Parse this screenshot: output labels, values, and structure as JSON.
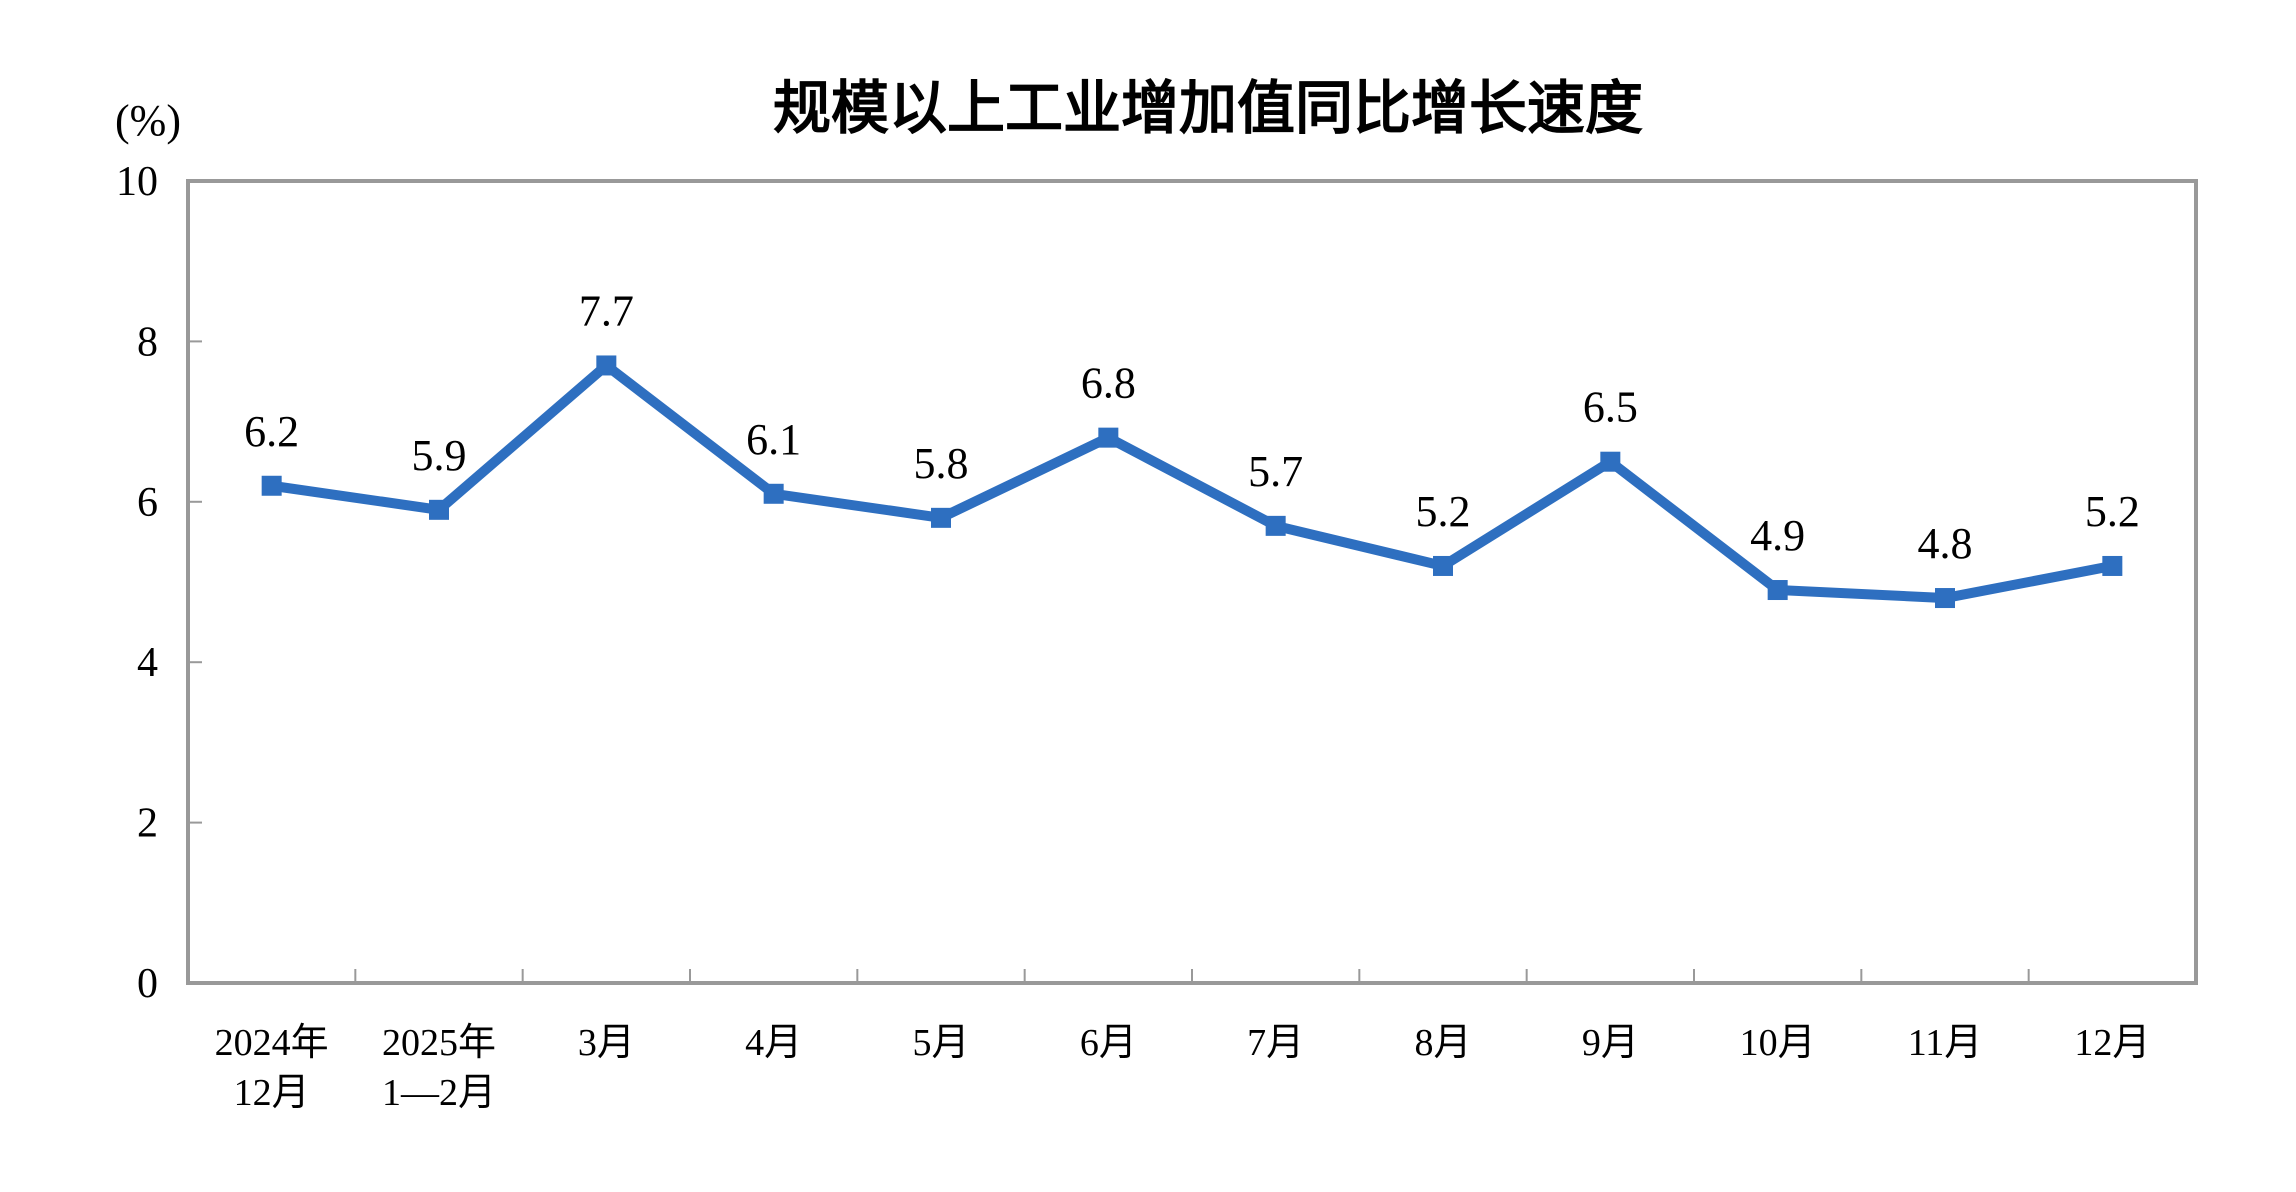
{
  "chart_data": {
    "type": "line",
    "title": "规模以上工业增加值同比增长速度",
    "ylabel": "(%)",
    "xlabel": "",
    "ylim": [
      0,
      10
    ],
    "yticks": [
      "0",
      "2",
      "4",
      "6",
      "8",
      "10"
    ],
    "grid": false,
    "categories": [
      [
        "2024年",
        "12月"
      ],
      [
        "2025年",
        "1—2月"
      ],
      [
        "3月"
      ],
      [
        "4月"
      ],
      [
        "5月"
      ],
      [
        "6月"
      ],
      [
        "7月"
      ],
      [
        "8月"
      ],
      [
        "9月"
      ],
      [
        "10月"
      ],
      [
        "11月"
      ],
      [
        "12月"
      ]
    ],
    "values": [
      6.2,
      5.9,
      7.7,
      6.1,
      5.8,
      6.8,
      5.7,
      5.2,
      6.5,
      4.9,
      4.8,
      5.2
    ],
    "data_labels": [
      "6.2",
      "5.9",
      "7.7",
      "6.1",
      "5.8",
      "6.8",
      "5.7",
      "5.2",
      "6.5",
      "4.9",
      "4.8",
      "5.2"
    ],
    "line_color": "#2E6FC0",
    "axis_color": "#999999",
    "marker": "square"
  }
}
